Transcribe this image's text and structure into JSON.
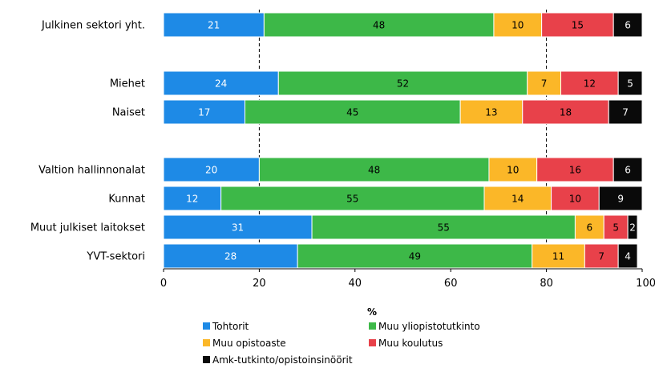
{
  "chart_data": {
    "type": "bar",
    "orientation": "horizontal",
    "stacked": true,
    "title": "",
    "xlabel": "%",
    "ylabel": "",
    "xlim": [
      0,
      100
    ],
    "x_ticks": [
      "0",
      "20",
      "40",
      "60",
      "80",
      "100"
    ],
    "grid": "vertical dashed at 20 and 80",
    "legend_position": "bottom",
    "categories": [
      "Julkinen sektori yht.",
      "Miehet",
      "Naiset",
      "Valtion hallinnonalat",
      "Kunnat",
      "Muut julkiset laitokset",
      "YVT-sektori"
    ],
    "series": [
      {
        "name": "Tohtorit",
        "color": "#1e8ae6",
        "label_color": "#ffffff",
        "values": [
          21,
          24,
          17,
          20,
          12,
          31,
          28
        ]
      },
      {
        "name": "Muu yliopistotutkinto",
        "color": "#3db848",
        "label_color": "#000000",
        "values": [
          48,
          52,
          45,
          48,
          55,
          55,
          49
        ]
      },
      {
        "name": "Muu opistoaste",
        "color": "#fbb728",
        "label_color": "#000000",
        "values": [
          10,
          7,
          13,
          10,
          14,
          6,
          11
        ]
      },
      {
        "name": "Muu koulutus",
        "color": "#e8414a",
        "label_color": "#000000",
        "values": [
          15,
          12,
          18,
          16,
          10,
          5,
          7
        ]
      },
      {
        "name": "Amk-tutkinto/opistoinsinöörit",
        "color": "#0a0a0a",
        "label_color": "#ffffff",
        "values": [
          6,
          5,
          7,
          6,
          9,
          2,
          4
        ]
      }
    ]
  }
}
